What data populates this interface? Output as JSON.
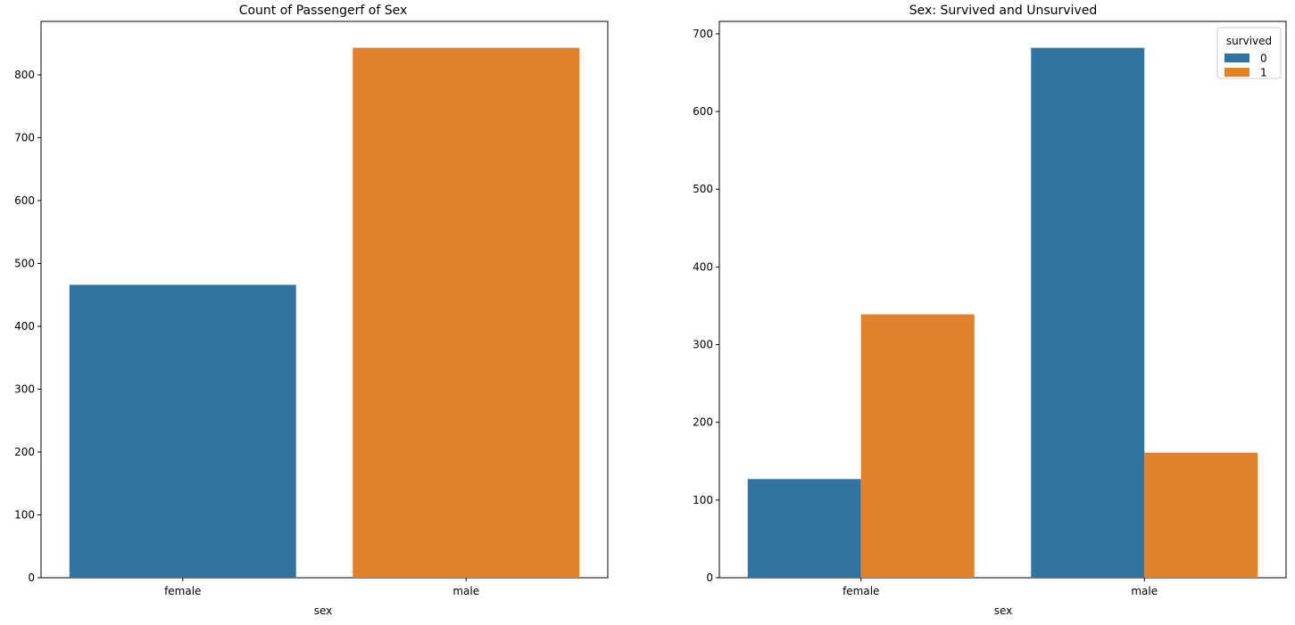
{
  "chart_data": [
    {
      "type": "bar",
      "title": "Count of Passengerf of Sex",
      "xlabel": "sex",
      "ylabel": "",
      "categories": [
        "female",
        "male"
      ],
      "values": [
        466,
        843
      ],
      "colors": [
        "#3274a1",
        "#e1812c"
      ],
      "ylim": [
        0,
        885
      ],
      "yticks": [
        0,
        100,
        200,
        300,
        400,
        500,
        600,
        700,
        800
      ],
      "grid": false
    },
    {
      "type": "bar",
      "title": "Sex: Survived and Unsurvived",
      "xlabel": "sex",
      "ylabel": "",
      "categories": [
        "female",
        "male"
      ],
      "series": [
        {
          "name": "0",
          "values": [
            127,
            682
          ],
          "color": "#3274a1"
        },
        {
          "name": "1",
          "values": [
            339,
            161
          ],
          "color": "#e1812c"
        }
      ],
      "legend": {
        "title": "survived",
        "position": "top-right"
      },
      "ylim": [
        0,
        716
      ],
      "yticks": [
        0,
        100,
        200,
        300,
        400,
        500,
        600,
        700
      ],
      "grid": false
    }
  ]
}
